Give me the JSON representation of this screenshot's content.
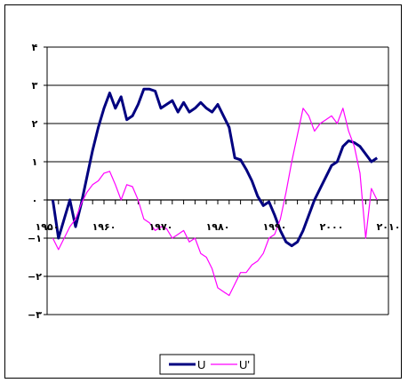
{
  "chart_data": {
    "type": "line",
    "title": "",
    "xlabel": "",
    "ylabel": "",
    "xlim": [
      1950,
      2010
    ],
    "ylim": [
      -3,
      4
    ],
    "grid": "horizontal",
    "legend_position": "bottom",
    "x_ticks": [
      {
        "value": 1950,
        "label": "۱۹۵۰"
      },
      {
        "value": 1960,
        "label": "۱۹۶۰"
      },
      {
        "value": 1970,
        "label": "۱۹۷۰"
      },
      {
        "value": 1980,
        "label": "۱۹۸۰"
      },
      {
        "value": 1990,
        "label": "۱۹۹۰"
      },
      {
        "value": 2000,
        "label": "۲۰۰۰"
      },
      {
        "value": 2010,
        "label": "۲۰۱۰"
      }
    ],
    "y_ticks": [
      {
        "value": 4,
        "label": "۴"
      },
      {
        "value": 3,
        "label": "۳"
      },
      {
        "value": 2,
        "label": "۲"
      },
      {
        "value": 1,
        "label": "۱"
      },
      {
        "value": 0,
        "label": "۰"
      },
      {
        "value": -1,
        "label": "−۱"
      },
      {
        "value": -2,
        "label": "−۲"
      },
      {
        "value": -3,
        "label": "−۳"
      }
    ],
    "series": [
      {
        "name": "U",
        "color": "#000080",
        "x": [
          1951,
          1952,
          1953,
          1954,
          1955,
          1956,
          1957,
          1958,
          1959,
          1960,
          1961,
          1962,
          1963,
          1964,
          1965,
          1966,
          1967,
          1968,
          1969,
          1970,
          1971,
          1972,
          1973,
          1974,
          1975,
          1976,
          1977,
          1978,
          1979,
          1980,
          1981,
          1982,
          1983,
          1984,
          1985,
          1986,
          1987,
          1988,
          1989,
          1990,
          1991,
          1992,
          1993,
          1994,
          1995,
          1996,
          1997,
          1998,
          1999,
          2000,
          2001,
          2002,
          2003,
          2004,
          2005,
          2006,
          2007,
          2008
        ],
        "values": [
          0.0,
          -1.0,
          -0.5,
          0.0,
          -0.7,
          -0.1,
          0.6,
          1.3,
          1.9,
          2.4,
          2.8,
          2.4,
          2.7,
          2.1,
          2.2,
          2.5,
          2.9,
          2.9,
          2.85,
          2.4,
          2.5,
          2.6,
          2.3,
          2.55,
          2.3,
          2.4,
          2.55,
          2.4,
          2.3,
          2.5,
          2.2,
          1.9,
          1.1,
          1.05,
          0.8,
          0.5,
          0.1,
          -0.15,
          -0.05,
          -0.4,
          -0.8,
          -1.1,
          -1.2,
          -1.1,
          -0.8,
          -0.4,
          0.0,
          0.3,
          0.6,
          0.9,
          1.0,
          1.4,
          1.55,
          1.5,
          1.4,
          1.2,
          1.0,
          1.1
        ]
      },
      {
        "name": "U'",
        "color": "#ff00ff",
        "x": [
          1951,
          1952,
          1953,
          1954,
          1955,
          1956,
          1957,
          1958,
          1959,
          1960,
          1961,
          1962,
          1963,
          1964,
          1965,
          1966,
          1967,
          1968,
          1969,
          1970,
          1971,
          1972,
          1973,
          1974,
          1975,
          1976,
          1977,
          1978,
          1979,
          1980,
          1981,
          1982,
          1983,
          1984,
          1985,
          1986,
          1987,
          1988,
          1989,
          1990,
          1991,
          1992,
          1993,
          1994,
          1995,
          1996,
          1997,
          1998,
          1999,
          2000,
          2001,
          2002,
          2003,
          2004,
          2005,
          2006,
          2007,
          2008
        ],
        "values": [
          -1.0,
          -1.3,
          -1.0,
          -0.7,
          -0.5,
          -0.1,
          0.2,
          0.4,
          0.5,
          0.7,
          0.75,
          0.4,
          0.0,
          0.4,
          0.35,
          0.0,
          -0.5,
          -0.6,
          -0.8,
          -0.7,
          -0.75,
          -1.0,
          -0.9,
          -0.8,
          -1.1,
          -1.0,
          -1.4,
          -1.5,
          -1.8,
          -2.3,
          -2.4,
          -2.5,
          -2.2,
          -1.9,
          -1.9,
          -1.7,
          -1.6,
          -1.4,
          -1.0,
          -0.9,
          -0.5,
          0.2,
          1.0,
          1.7,
          2.4,
          2.2,
          1.8,
          2.0,
          2.1,
          2.2,
          2.0,
          2.4,
          1.8,
          1.4,
          0.7,
          -1.0,
          0.3,
          0.0
        ]
      }
    ]
  }
}
